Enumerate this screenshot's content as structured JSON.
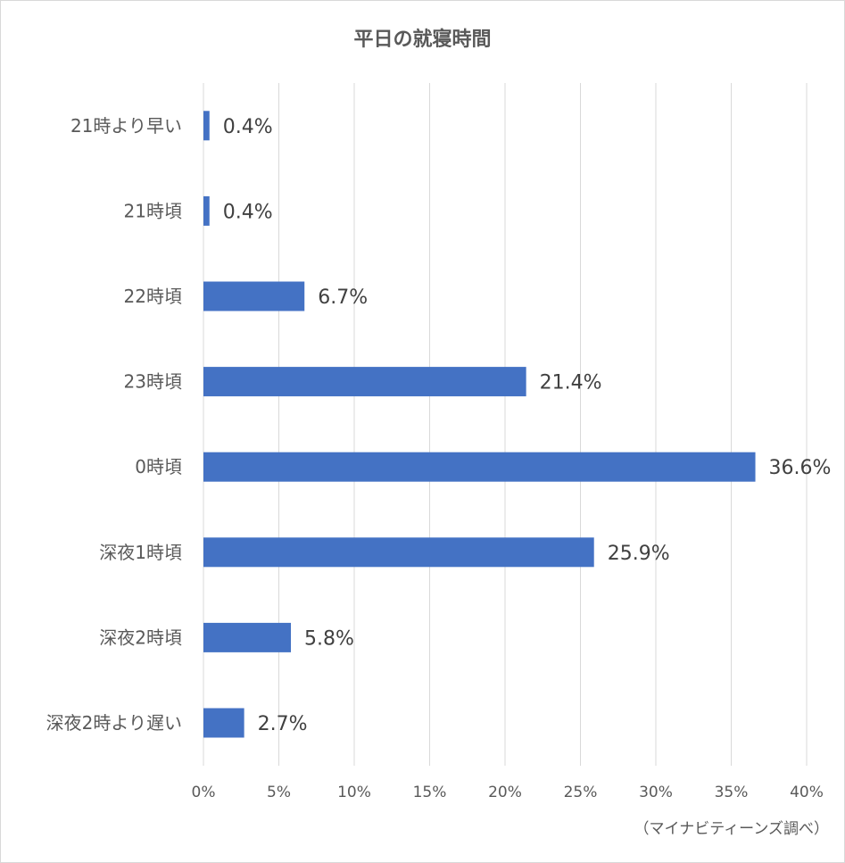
{
  "chart_data": {
    "type": "bar",
    "orientation": "horizontal",
    "title": "平日の就寝時間",
    "categories": [
      "21時より早い",
      "21時頃",
      "22時頃",
      "23時頃",
      "0時頃",
      "深夜1時頃",
      "深夜2時頃",
      "深夜2時より遅い"
    ],
    "values": [
      0.4,
      0.4,
      6.7,
      21.4,
      36.6,
      25.9,
      5.8,
      2.7
    ],
    "data_labels": [
      "0.4%",
      "0.4%",
      "6.7%",
      "21.4%",
      "36.6%",
      "25.9%",
      "5.8%",
      "2.7%"
    ],
    "x_ticks": [
      "0%",
      "5%",
      "10%",
      "15%",
      "20%",
      "25%",
      "30%",
      "35%",
      "40%"
    ],
    "xlim": [
      0,
      40
    ],
    "grid": true,
    "bar_color": "#4472C4",
    "grid_color": "#d9d9d9"
  },
  "source_note": "（マイナビティーンズ調べ）"
}
